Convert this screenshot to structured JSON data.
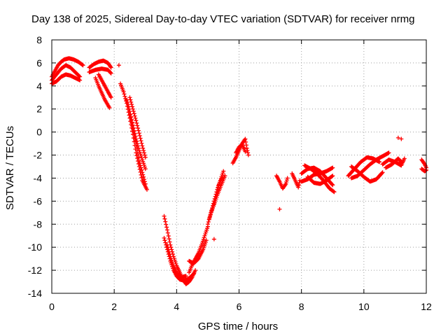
{
  "chart_data": {
    "type": "scatter",
    "title": "Day 138 of 2025, Sidereal Day-to-day VTEC variation (SDTVAR) for receiver nrmg",
    "xlabel": "GPS time / hours",
    "ylabel": "SDTVAR / TECUs",
    "xlim": [
      0,
      12
    ],
    "ylim": [
      -14,
      8
    ],
    "xticks": [
      "0",
      "2",
      "4",
      "6",
      "8",
      "10",
      "12"
    ],
    "yticks": [
      "8",
      "6",
      "4",
      "2",
      "0",
      "-2",
      "-4",
      "-6",
      "-8",
      "-10",
      "-12",
      "-14"
    ],
    "grid": true,
    "marker": "plus",
    "series_color": "#ff0000",
    "tracks": [
      [
        [
          0.0,
          4.8
        ],
        [
          0.1,
          5.3
        ],
        [
          0.2,
          5.8
        ],
        [
          0.3,
          6.1
        ],
        [
          0.4,
          6.3
        ],
        [
          0.55,
          6.4
        ],
        [
          0.7,
          6.3
        ],
        [
          0.85,
          6.1
        ],
        [
          1.0,
          5.8
        ]
      ],
      [
        [
          0.0,
          4.5
        ],
        [
          0.15,
          5.0
        ],
        [
          0.3,
          5.5
        ],
        [
          0.45,
          5.8
        ],
        [
          0.6,
          5.6
        ],
        [
          0.75,
          5.2
        ],
        [
          0.9,
          4.8
        ]
      ],
      [
        [
          0.0,
          4.2
        ],
        [
          0.15,
          4.4
        ],
        [
          0.3,
          4.8
        ],
        [
          0.45,
          5.0
        ],
        [
          0.6,
          4.9
        ],
        [
          0.75,
          4.7
        ],
        [
          0.9,
          4.5
        ]
      ],
      [
        [
          1.2,
          5.6
        ],
        [
          1.35,
          5.9
        ],
        [
          1.5,
          6.1
        ],
        [
          1.65,
          6.2
        ],
        [
          1.8,
          6.0
        ],
        [
          1.9,
          5.6
        ]
      ],
      [
        [
          1.2,
          5.2
        ],
        [
          1.4,
          5.4
        ],
        [
          1.6,
          5.5
        ],
        [
          1.8,
          5.4
        ],
        [
          1.9,
          5.1
        ]
      ],
      [
        [
          1.4,
          4.7
        ],
        [
          1.5,
          4.0
        ],
        [
          1.6,
          3.4
        ],
        [
          1.7,
          2.8
        ],
        [
          1.85,
          2.1
        ]
      ],
      [
        [
          1.5,
          5.0
        ],
        [
          1.6,
          4.5
        ],
        [
          1.7,
          4.0
        ],
        [
          1.8,
          3.5
        ],
        [
          1.9,
          3.0
        ]
      ],
      [
        [
          2.2,
          4.2
        ],
        [
          2.3,
          3.5
        ],
        [
          2.4,
          2.5
        ],
        [
          2.5,
          1.2
        ],
        [
          2.6,
          -0.2
        ],
        [
          2.7,
          -1.8
        ],
        [
          2.8,
          -3.0
        ],
        [
          2.9,
          -4.2
        ],
        [
          3.05,
          -5.0
        ]
      ],
      [
        [
          2.4,
          2.8
        ],
        [
          2.5,
          1.8
        ],
        [
          2.6,
          0.6
        ],
        [
          2.7,
          -0.6
        ],
        [
          2.8,
          -1.6
        ],
        [
          2.9,
          -2.4
        ],
        [
          3.0,
          -3.2
        ]
      ],
      [
        [
          2.5,
          3.0
        ],
        [
          2.6,
          2.0
        ],
        [
          2.7,
          1.0
        ],
        [
          2.8,
          -0.1
        ],
        [
          2.9,
          -1.2
        ],
        [
          3.0,
          -2.2
        ]
      ],
      [
        [
          2.5,
          1.5
        ],
        [
          2.6,
          0.3
        ],
        [
          2.7,
          -1.0
        ],
        [
          2.8,
          -2.5
        ],
        [
          2.9,
          -3.5
        ],
        [
          3.0,
          -4.5
        ]
      ],
      [
        [
          3.6,
          -7.3
        ],
        [
          3.7,
          -8.5
        ],
        [
          3.8,
          -9.8
        ],
        [
          3.9,
          -10.8
        ],
        [
          4.0,
          -11.6
        ],
        [
          4.1,
          -12.2
        ],
        [
          4.2,
          -12.8
        ],
        [
          4.3,
          -13.2
        ],
        [
          4.4,
          -13.0
        ],
        [
          4.5,
          -12.6
        ],
        [
          4.6,
          -12.0
        ]
      ],
      [
        [
          3.6,
          -9.2
        ],
        [
          3.7,
          -10.2
        ],
        [
          3.8,
          -11.2
        ],
        [
          3.9,
          -12.0
        ],
        [
          4.0,
          -12.5
        ],
        [
          4.1,
          -12.8
        ],
        [
          4.25,
          -12.9
        ],
        [
          4.4,
          -12.7
        ],
        [
          4.55,
          -12.3
        ]
      ],
      [
        [
          3.7,
          -9.8
        ],
        [
          3.8,
          -10.8
        ],
        [
          3.9,
          -11.6
        ],
        [
          4.0,
          -12.2
        ],
        [
          4.15,
          -12.6
        ],
        [
          4.3,
          -12.5
        ]
      ],
      [
        [
          4.4,
          -12.2
        ],
        [
          4.5,
          -11.5
        ],
        [
          4.6,
          -11.0
        ],
        [
          4.7,
          -10.5
        ],
        [
          4.8,
          -9.8
        ],
        [
          4.9,
          -9.0
        ],
        [
          5.0,
          -8.2
        ]
      ],
      [
        [
          4.4,
          -11.2
        ],
        [
          4.55,
          -11.4
        ],
        [
          4.7,
          -11.0
        ],
        [
          4.85,
          -10.2
        ],
        [
          4.95,
          -9.4
        ]
      ],
      [
        [
          5.0,
          -8.0
        ],
        [
          5.1,
          -7.0
        ],
        [
          5.2,
          -6.0
        ],
        [
          5.3,
          -5.0
        ],
        [
          5.4,
          -4.2
        ],
        [
          5.5,
          -3.4
        ]
      ],
      [
        [
          5.05,
          -7.5
        ],
        [
          5.15,
          -6.6
        ],
        [
          5.25,
          -5.6
        ],
        [
          5.35,
          -4.6
        ],
        [
          5.45,
          -4.0
        ]
      ],
      [
        [
          5.1,
          -7.0
        ],
        [
          5.2,
          -6.3
        ],
        [
          5.3,
          -5.5
        ],
        [
          5.4,
          -4.8
        ],
        [
          5.55,
          -3.8
        ]
      ],
      [
        [
          5.8,
          -2.7
        ],
        [
          5.9,
          -2.2
        ],
        [
          6.0,
          -1.6
        ],
        [
          6.1,
          -1.0
        ],
        [
          6.2,
          -0.6
        ],
        [
          6.25,
          -1.4
        ],
        [
          6.3,
          -2.0
        ]
      ],
      [
        [
          5.9,
          -1.8
        ],
        [
          6.0,
          -1.3
        ],
        [
          6.1,
          -1.1
        ],
        [
          6.2,
          -1.7
        ]
      ],
      [
        [
          7.2,
          -3.8
        ],
        [
          7.3,
          -4.3
        ],
        [
          7.4,
          -4.9
        ],
        [
          7.5,
          -4.5
        ],
        [
          7.55,
          -4.0
        ]
      ],
      [
        [
          7.7,
          -3.6
        ],
        [
          7.8,
          -4.2
        ],
        [
          7.9,
          -4.8
        ],
        [
          7.95,
          -4.2
        ]
      ],
      [
        [
          8.0,
          -3.6
        ],
        [
          8.2,
          -3.2
        ],
        [
          8.4,
          -3.1
        ],
        [
          8.6,
          -3.4
        ],
        [
          8.8,
          -4.0
        ],
        [
          9.0,
          -4.6
        ]
      ],
      [
        [
          8.0,
          -4.3
        ],
        [
          8.2,
          -4.1
        ],
        [
          8.4,
          -3.7
        ],
        [
          8.6,
          -3.6
        ],
        [
          8.8,
          -3.4
        ],
        [
          9.0,
          -3.1
        ]
      ],
      [
        [
          8.1,
          -2.9
        ],
        [
          8.3,
          -3.2
        ],
        [
          8.5,
          -3.6
        ],
        [
          8.7,
          -4.2
        ],
        [
          8.9,
          -4.9
        ],
        [
          9.05,
          -5.2
        ]
      ],
      [
        [
          8.2,
          -3.9
        ],
        [
          8.4,
          -4.4
        ],
        [
          8.6,
          -4.5
        ],
        [
          8.8,
          -4.2
        ],
        [
          9.0,
          -3.8
        ]
      ],
      [
        [
          9.5,
          -3.8
        ],
        [
          9.7,
          -3.2
        ],
        [
          9.9,
          -2.6
        ],
        [
          10.1,
          -2.2
        ],
        [
          10.3,
          -2.3
        ],
        [
          10.5,
          -2.6
        ]
      ],
      [
        [
          9.6,
          -3.0
        ],
        [
          9.8,
          -3.4
        ],
        [
          10.0,
          -3.9
        ],
        [
          10.2,
          -4.3
        ],
        [
          10.4,
          -4.1
        ],
        [
          10.6,
          -3.5
        ]
      ],
      [
        [
          9.6,
          -4.0
        ],
        [
          9.8,
          -3.8
        ],
        [
          10.0,
          -3.3
        ],
        [
          10.2,
          -2.8
        ],
        [
          10.4,
          -2.4
        ],
        [
          10.6,
          -2.1
        ],
        [
          10.8,
          -1.8
        ]
      ],
      [
        [
          10.6,
          -2.8
        ],
        [
          10.8,
          -2.4
        ],
        [
          11.0,
          -2.6
        ],
        [
          11.2,
          -2.9
        ],
        [
          11.3,
          -2.3
        ]
      ],
      [
        [
          10.7,
          -3.1
        ],
        [
          10.9,
          -2.8
        ],
        [
          11.1,
          -2.3
        ],
        [
          11.2,
          -2.6
        ]
      ],
      [
        [
          11.85,
          -2.4
        ],
        [
          11.95,
          -2.8
        ],
        [
          12.0,
          -3.1
        ]
      ],
      [
        [
          11.85,
          -3.2
        ],
        [
          11.95,
          -3.4
        ],
        [
          12.0,
          -3.3
        ]
      ]
    ],
    "singles": [
      [
        2.15,
        5.8
      ],
      [
        7.3,
        -6.7
      ],
      [
        5.2,
        -9.3
      ],
      [
        11.1,
        -0.5
      ],
      [
        11.2,
        -0.6
      ]
    ]
  }
}
